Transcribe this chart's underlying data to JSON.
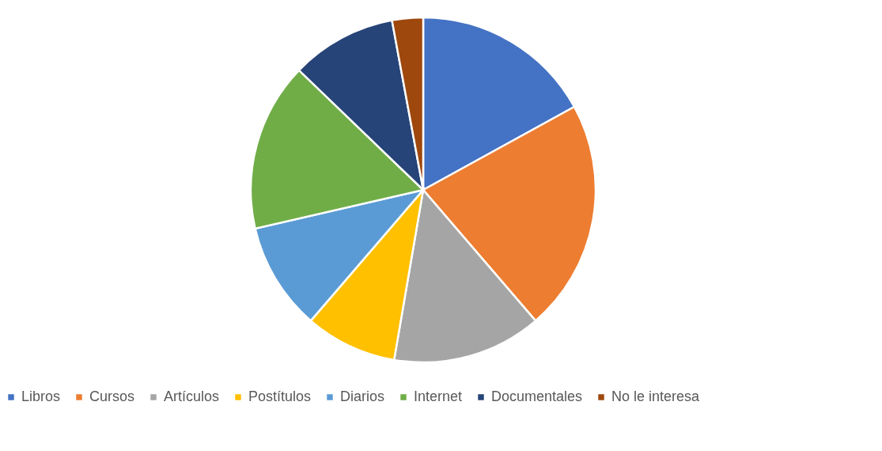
{
  "chart_data": {
    "type": "pie",
    "legend": "bottom",
    "categories": [
      "Libros",
      "Cursos",
      "Artículos",
      "Postítulos",
      "Diarios",
      "Internet",
      "Documentales",
      "No le interesa"
    ],
    "values": [
      17.0,
      21.7,
      14.0,
      8.6,
      10.1,
      15.8,
      9.9,
      2.9
    ],
    "colors": [
      "#4472c4",
      "#ed7d31",
      "#a5a5a5",
      "#ffc000",
      "#5b9bd5",
      "#70ad47",
      "#264478",
      "#9e480e"
    ]
  }
}
